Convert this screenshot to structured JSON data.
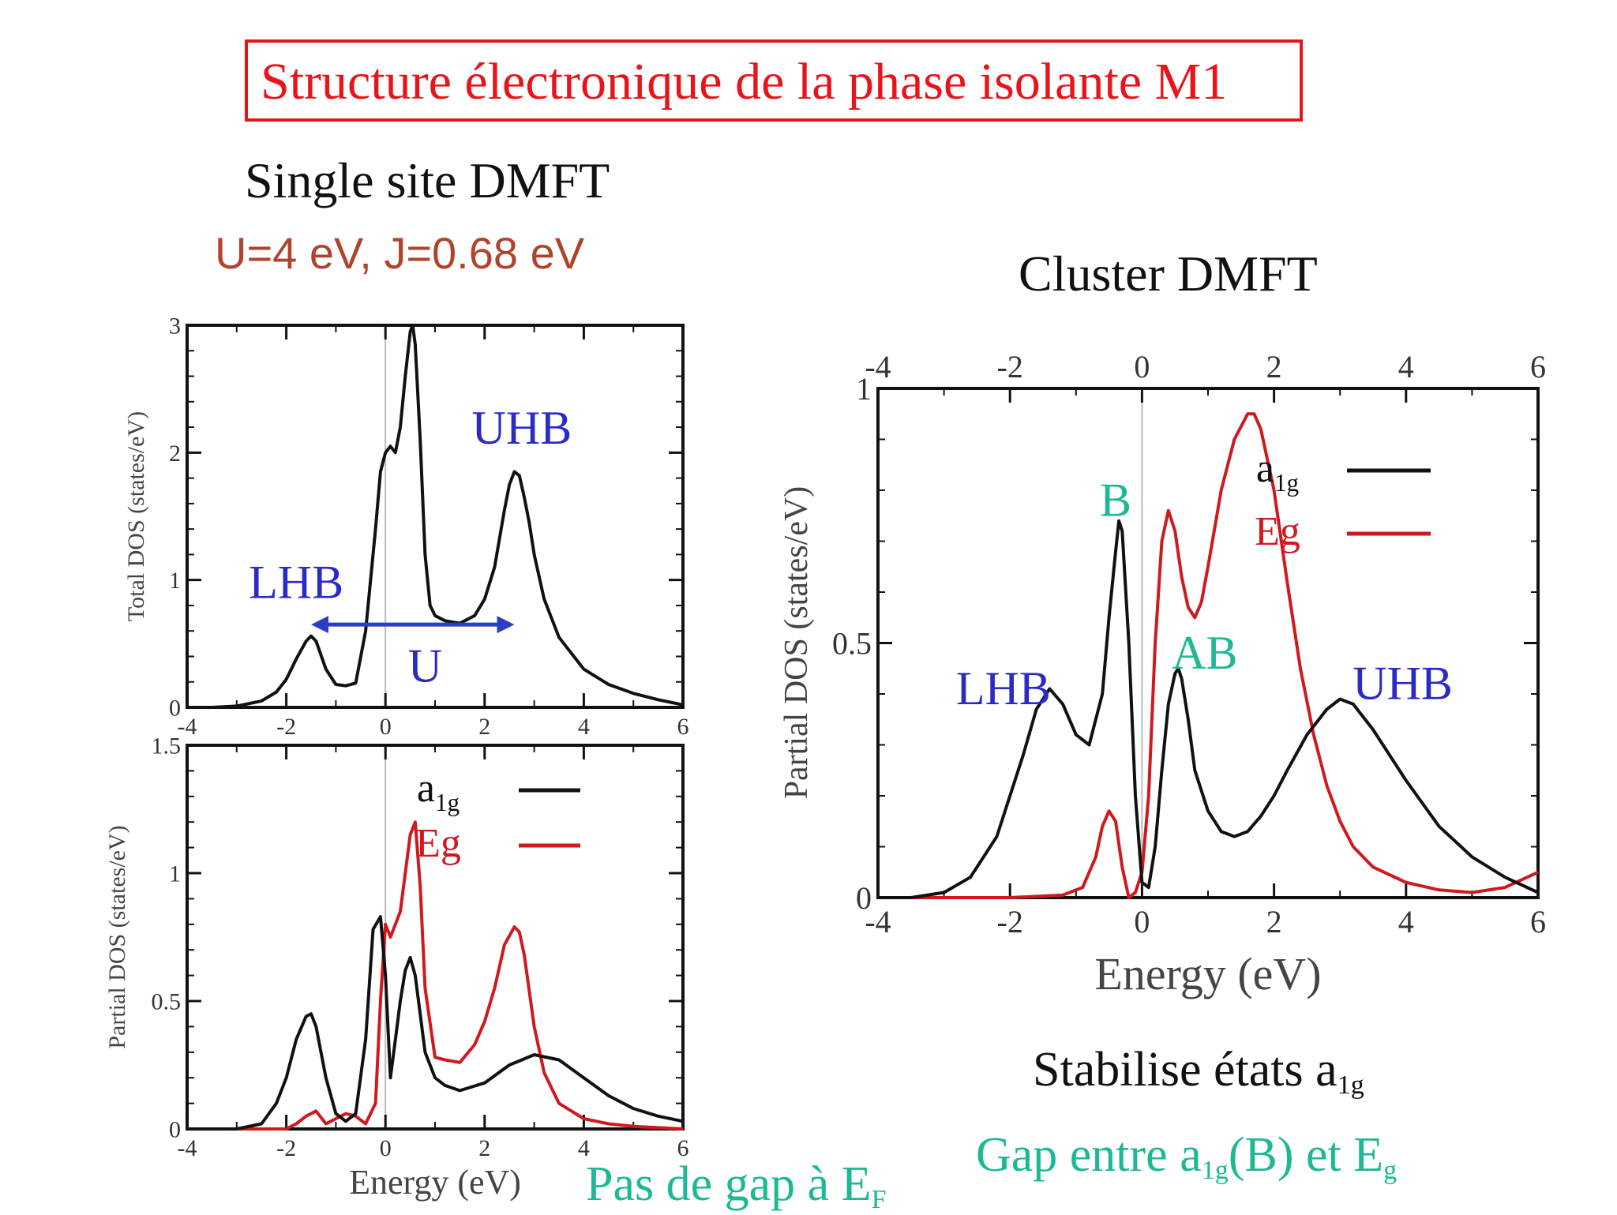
{
  "title": "Structure électronique de la phase isolante M1",
  "single_site": {
    "title": "Single site DMFT",
    "params": "U=4 eV, J=0.68 eV",
    "note": {
      "text": "Pas de gap à E",
      "sub": "F"
    }
  },
  "cluster": {
    "title": "Cluster DMFT",
    "note1": {
      "text": "Stabilise états a",
      "sub": "1g"
    },
    "note2": {
      "pre": "Gap entre  a",
      "sub1": "1g",
      "mid": "(B) et E",
      "sub2": "g"
    }
  },
  "colors": {
    "title": "#e8141b",
    "params": "#b0432b",
    "band_label": "#2a2ac4",
    "bond_label": "#1db894",
    "a1g": "#111111",
    "Eg": "#d0191f",
    "arrow": "#2a3ec4"
  },
  "chart_data": [
    {
      "type": "line",
      "id": "total",
      "xlabel": "",
      "ylabel": "Total DOS (states/eV)",
      "xlim": [
        -4,
        6
      ],
      "ylim": [
        0,
        3
      ],
      "xticks": [
        -4,
        -2,
        0,
        2,
        4,
        6
      ],
      "yticks": [
        0,
        1,
        2,
        3
      ],
      "series": [
        {
          "key": "total",
          "color": "#111111",
          "x": [
            -4,
            -3.5,
            -3,
            -2.5,
            -2.2,
            -2,
            -1.8,
            -1.6,
            -1.5,
            -1.4,
            -1.2,
            -1,
            -0.8,
            -0.6,
            -0.4,
            -0.2,
            -0.1,
            0,
            0.1,
            0.2,
            0.3,
            0.4,
            0.5,
            0.55,
            0.6,
            0.7,
            0.8,
            0.9,
            1,
            1.2,
            1.5,
            1.8,
            2,
            2.2,
            2.4,
            2.5,
            2.6,
            2.7,
            2.8,
            2.9,
            3,
            3.2,
            3.5,
            4,
            4.5,
            5,
            5.5,
            6
          ],
          "y": [
            0,
            0,
            0.01,
            0.05,
            0.12,
            0.22,
            0.38,
            0.52,
            0.56,
            0.52,
            0.3,
            0.18,
            0.17,
            0.19,
            0.6,
            1.4,
            1.85,
            2.0,
            2.05,
            2.0,
            2.2,
            2.6,
            2.95,
            3.0,
            2.85,
            2.1,
            1.2,
            0.8,
            0.72,
            0.68,
            0.66,
            0.72,
            0.85,
            1.1,
            1.55,
            1.75,
            1.85,
            1.82,
            1.65,
            1.45,
            1.2,
            0.85,
            0.55,
            0.3,
            0.18,
            0.11,
            0.06,
            0.02
          ]
        }
      ],
      "annotations": [
        {
          "text": "UHB",
          "x": 2.75,
          "y": 2.07,
          "kind": "band"
        },
        {
          "text": "LHB",
          "x": -1.8,
          "y": 0.86,
          "kind": "band"
        },
        {
          "text": "U",
          "x": 0.8,
          "y": 0.2,
          "kind": "band"
        }
      ],
      "arrow": {
        "x1": -1.5,
        "x2": 2.6,
        "y": 0.65
      }
    },
    {
      "type": "line",
      "id": "partial-single",
      "xlabel": "Energy (eV)",
      "ylabel": "Partial DOS (states/eV)",
      "xlim": [
        -4,
        6
      ],
      "ylim": [
        0,
        1.5
      ],
      "xticks": [
        -4,
        -2,
        0,
        2,
        4,
        6
      ],
      "yticks": [
        0,
        0.5,
        1,
        1.5
      ],
      "legend": [
        {
          "label": "a",
          "sub": "1g",
          "key": "a1g"
        },
        {
          "label": "Eg",
          "sub": "",
          "key": "Eg"
        }
      ],
      "series": [
        {
          "key": "a1g",
          "color": "#111111",
          "x": [
            -4,
            -3,
            -2.5,
            -2.2,
            -2,
            -1.8,
            -1.6,
            -1.5,
            -1.4,
            -1.2,
            -1,
            -0.8,
            -0.6,
            -0.4,
            -0.25,
            -0.1,
            0,
            0.1,
            0.2,
            0.3,
            0.4,
            0.5,
            0.6,
            0.8,
            1,
            1.2,
            1.5,
            2,
            2.5,
            3,
            3.5,
            4,
            4.5,
            5,
            5.5,
            6
          ],
          "y": [
            0,
            0,
            0.02,
            0.1,
            0.2,
            0.35,
            0.44,
            0.45,
            0.4,
            0.2,
            0.06,
            0.03,
            0.06,
            0.35,
            0.78,
            0.83,
            0.6,
            0.2,
            0.35,
            0.5,
            0.62,
            0.67,
            0.6,
            0.3,
            0.2,
            0.17,
            0.15,
            0.18,
            0.25,
            0.29,
            0.27,
            0.2,
            0.13,
            0.08,
            0.05,
            0.03
          ]
        },
        {
          "key": "Eg",
          "color": "#d0191f",
          "x": [
            -4,
            -2,
            -1.8,
            -1.6,
            -1.4,
            -1.2,
            -1,
            -0.8,
            -0.6,
            -0.4,
            -0.2,
            -0.1,
            0,
            0.1,
            0.2,
            0.3,
            0.4,
            0.5,
            0.6,
            0.7,
            0.8,
            1,
            1.2,
            1.5,
            1.8,
            2,
            2.2,
            2.4,
            2.6,
            2.7,
            2.8,
            3,
            3.2,
            3.5,
            4,
            4.5,
            5,
            5.5,
            6
          ],
          "y": [
            0,
            0,
            0.02,
            0.05,
            0.07,
            0.02,
            0.04,
            0.06,
            0.05,
            0.02,
            0.1,
            0.5,
            0.8,
            0.75,
            0.8,
            0.85,
            1.0,
            1.15,
            1.2,
            0.95,
            0.55,
            0.28,
            0.27,
            0.26,
            0.33,
            0.42,
            0.55,
            0.72,
            0.79,
            0.77,
            0.68,
            0.4,
            0.22,
            0.1,
            0.04,
            0.02,
            0.01,
            0.005,
            0
          ]
        }
      ]
    },
    {
      "type": "line",
      "id": "partial-cluster",
      "xlabel": "Energy (eV)",
      "ylabel": "Partial DOS (states/eV)",
      "xlim": [
        -4,
        6
      ],
      "ylim": [
        0,
        1
      ],
      "xticks": [
        -4,
        -2,
        0,
        2,
        4,
        6
      ],
      "yticks": [
        0,
        0.5,
        1
      ],
      "legend": [
        {
          "label": "a",
          "sub": "1g",
          "key": "a1g"
        },
        {
          "label": "Eg",
          "sub": "",
          "key": "Eg"
        }
      ],
      "series": [
        {
          "key": "a1g",
          "color": "#111111",
          "x": [
            -4,
            -3.5,
            -3,
            -2.6,
            -2.2,
            -1.8,
            -1.6,
            -1.4,
            -1.2,
            -1,
            -0.8,
            -0.6,
            -0.5,
            -0.4,
            -0.35,
            -0.3,
            -0.2,
            -0.1,
            0,
            0.1,
            0.2,
            0.3,
            0.4,
            0.5,
            0.55,
            0.6,
            0.7,
            0.8,
            1,
            1.2,
            1.4,
            1.6,
            1.8,
            2,
            2.2,
            2.5,
            2.8,
            3,
            3.2,
            3.5,
            4,
            4.5,
            5,
            5.5,
            6
          ],
          "y": [
            0,
            0,
            0.01,
            0.04,
            0.12,
            0.28,
            0.37,
            0.41,
            0.38,
            0.32,
            0.3,
            0.4,
            0.55,
            0.68,
            0.74,
            0.72,
            0.5,
            0.2,
            0.03,
            0.02,
            0.1,
            0.25,
            0.38,
            0.44,
            0.45,
            0.43,
            0.35,
            0.25,
            0.17,
            0.13,
            0.12,
            0.13,
            0.16,
            0.2,
            0.25,
            0.32,
            0.37,
            0.39,
            0.38,
            0.33,
            0.23,
            0.14,
            0.08,
            0.04,
            0.01
          ]
        },
        {
          "key": "Eg",
          "color": "#d0191f",
          "x": [
            -4,
            -2,
            -1.2,
            -0.9,
            -0.7,
            -0.6,
            -0.5,
            -0.4,
            -0.3,
            -0.2,
            -0.1,
            0,
            0.1,
            0.2,
            0.3,
            0.4,
            0.5,
            0.6,
            0.7,
            0.8,
            0.9,
            1,
            1.2,
            1.4,
            1.6,
            1.7,
            1.8,
            2,
            2.2,
            2.4,
            2.6,
            2.8,
            3,
            3.2,
            3.5,
            4,
            4.5,
            5,
            5.5,
            6
          ],
          "y": [
            0,
            0,
            0.005,
            0.02,
            0.08,
            0.14,
            0.17,
            0.15,
            0.06,
            0.0,
            0.01,
            0.05,
            0.2,
            0.5,
            0.7,
            0.76,
            0.72,
            0.63,
            0.57,
            0.55,
            0.58,
            0.65,
            0.8,
            0.9,
            0.95,
            0.95,
            0.92,
            0.8,
            0.62,
            0.45,
            0.32,
            0.22,
            0.15,
            0.1,
            0.06,
            0.03,
            0.015,
            0.01,
            0.02,
            0.05
          ]
        }
      ],
      "annotations": [
        {
          "text": "B",
          "x": -0.4,
          "y": 0.75,
          "kind": "bond"
        },
        {
          "text": "AB",
          "x": 0.95,
          "y": 0.45,
          "kind": "bond"
        },
        {
          "text": "LHB",
          "x": -2.1,
          "y": 0.38,
          "kind": "band"
        },
        {
          "text": "UHB",
          "x": 3.95,
          "y": 0.39,
          "kind": "band"
        }
      ]
    }
  ]
}
